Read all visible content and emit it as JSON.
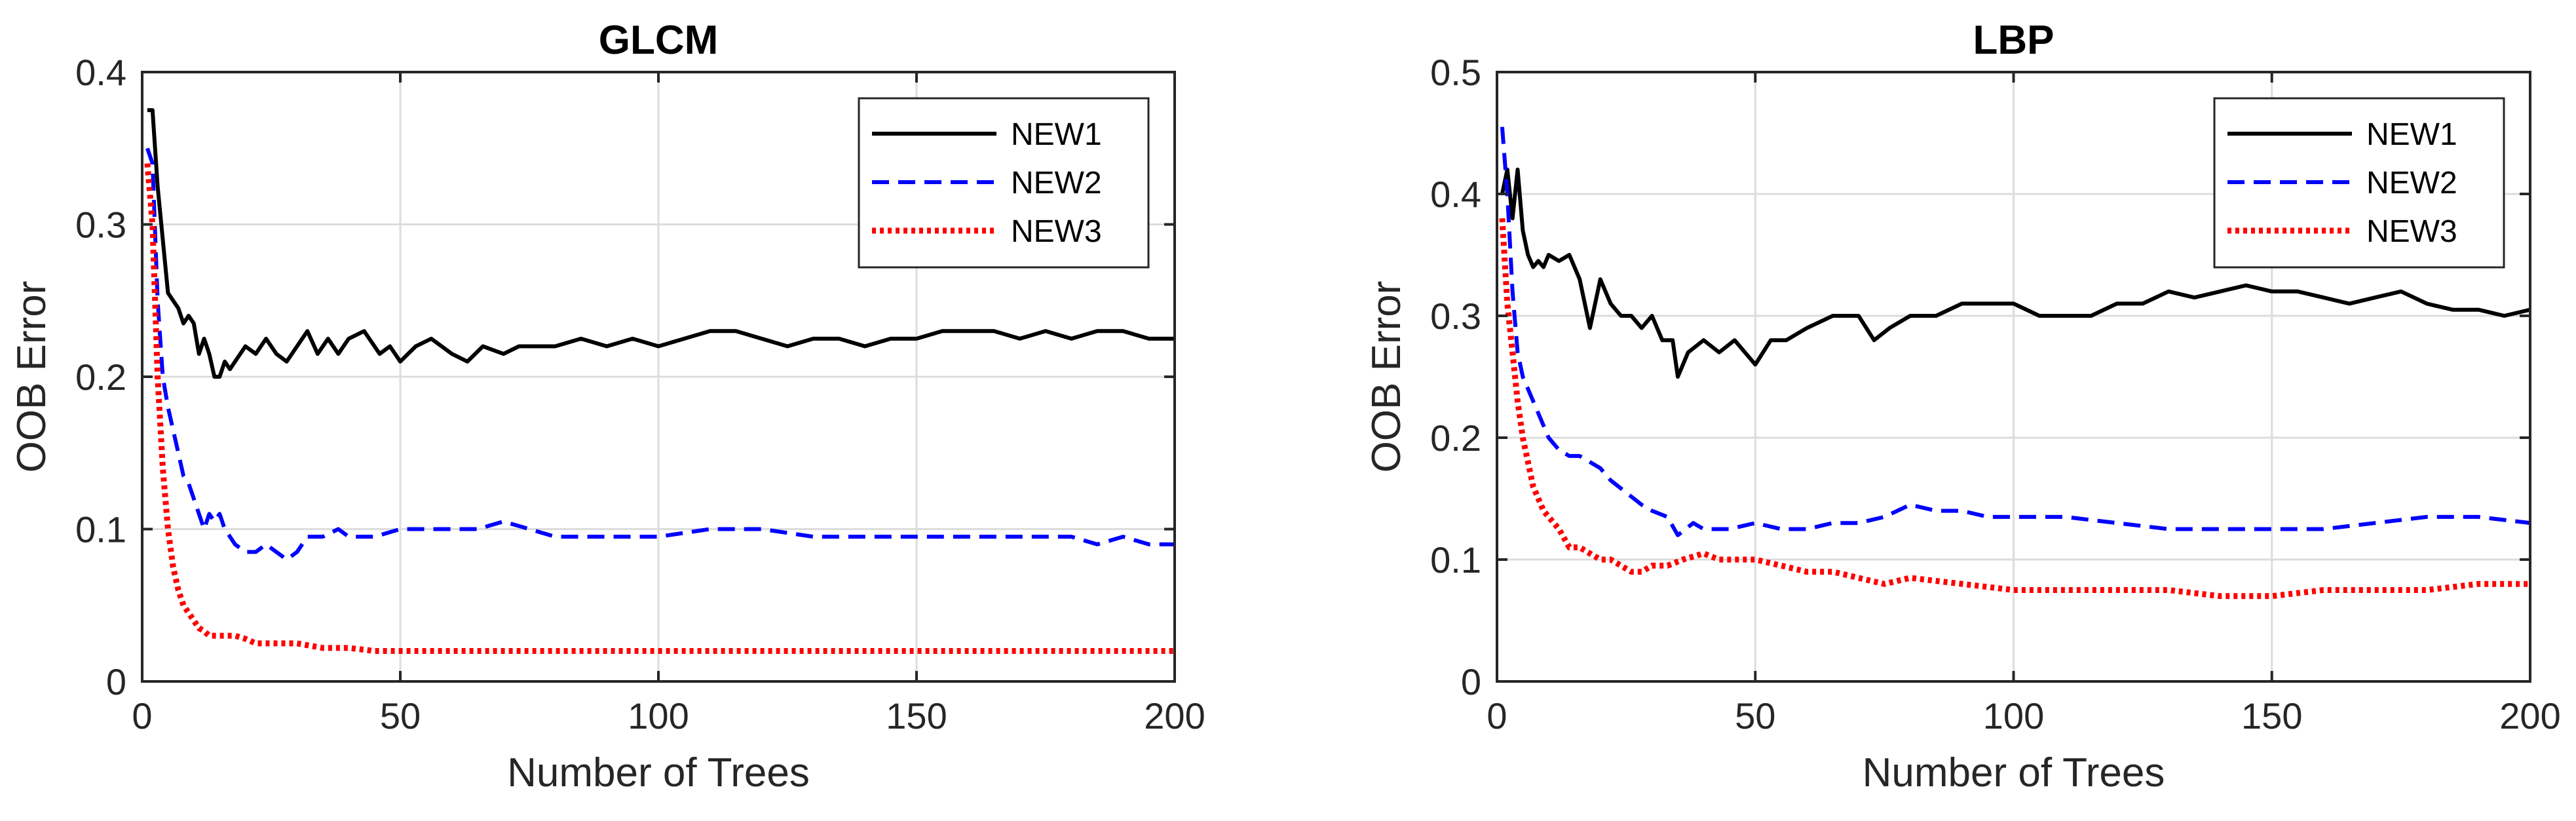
{
  "figure_label": "OOB error vs number of trees for GLCM and LBP features",
  "colors": {
    "NEW1": "#000000",
    "NEW2": "#0000ff",
    "NEW3": "#ff0000"
  },
  "chart_data": [
    {
      "type": "line",
      "title": "GLCM",
      "xlabel": "Number of Trees",
      "ylabel": "OOB Error",
      "xlim": [
        0,
        200
      ],
      "ylim": [
        0,
        0.4
      ],
      "xticks": [
        0,
        50,
        100,
        150,
        200
      ],
      "xtick_labels": [
        "0",
        "50",
        "100",
        "150",
        "200"
      ],
      "yticks": [
        0,
        0.1,
        0.2,
        0.3,
        0.4
      ],
      "ytick_labels": [
        "0",
        "0.1",
        "0.2",
        "0.3",
        "0.4"
      ],
      "grid": true,
      "legend_position": "top-right",
      "series": [
        {
          "name": "NEW1",
          "style": "solid",
          "color": "#000000",
          "x": [
            1,
            2,
            3,
            4,
            5,
            6,
            7,
            8,
            9,
            10,
            11,
            12,
            13,
            14,
            15,
            16,
            17,
            18,
            20,
            22,
            24,
            26,
            28,
            30,
            32,
            34,
            36,
            38,
            40,
            43,
            46,
            48,
            50,
            53,
            56,
            60,
            63,
            66,
            70,
            73,
            76,
            80,
            85,
            90,
            95,
            100,
            105,
            110,
            115,
            120,
            125,
            130,
            135,
            140,
            145,
            150,
            155,
            160,
            165,
            170,
            175,
            180,
            185,
            190,
            195,
            200
          ],
          "y": [
            0.375,
            0.375,
            0.325,
            0.29,
            0.255,
            0.25,
            0.245,
            0.235,
            0.24,
            0.235,
            0.215,
            0.225,
            0.215,
            0.2,
            0.2,
            0.21,
            0.205,
            0.21,
            0.22,
            0.215,
            0.225,
            0.215,
            0.21,
            0.22,
            0.23,
            0.215,
            0.225,
            0.215,
            0.225,
            0.23,
            0.215,
            0.22,
            0.21,
            0.22,
            0.225,
            0.215,
            0.21,
            0.22,
            0.215,
            0.22,
            0.22,
            0.22,
            0.225,
            0.22,
            0.225,
            0.22,
            0.225,
            0.23,
            0.23,
            0.225,
            0.22,
            0.225,
            0.225,
            0.22,
            0.225,
            0.225,
            0.23,
            0.23,
            0.23,
            0.225,
            0.23,
            0.225,
            0.23,
            0.23,
            0.225,
            0.225
          ]
        },
        {
          "name": "NEW2",
          "style": "dashed",
          "color": "#0000ff",
          "x": [
            1,
            2,
            3,
            4,
            5,
            6,
            7,
            8,
            9,
            10,
            11,
            12,
            13,
            14,
            15,
            16,
            17,
            18,
            20,
            22,
            24,
            26,
            28,
            30,
            32,
            35,
            38,
            40,
            45,
            50,
            55,
            60,
            65,
            70,
            75,
            80,
            90,
            100,
            110,
            120,
            130,
            140,
            150,
            160,
            170,
            180,
            185,
            190,
            195,
            200
          ],
          "y": [
            0.35,
            0.34,
            0.25,
            0.2,
            0.18,
            0.165,
            0.15,
            0.135,
            0.13,
            0.12,
            0.11,
            0.1,
            0.11,
            0.105,
            0.11,
            0.1,
            0.095,
            0.09,
            0.085,
            0.085,
            0.09,
            0.085,
            0.08,
            0.085,
            0.095,
            0.095,
            0.1,
            0.095,
            0.095,
            0.1,
            0.1,
            0.1,
            0.1,
            0.105,
            0.1,
            0.095,
            0.095,
            0.095,
            0.1,
            0.1,
            0.095,
            0.095,
            0.095,
            0.095,
            0.095,
            0.095,
            0.09,
            0.095,
            0.09,
            0.09
          ]
        },
        {
          "name": "NEW3",
          "style": "dotted",
          "color": "#ff0000",
          "x": [
            1,
            2,
            3,
            4,
            5,
            6,
            7,
            8,
            9,
            10,
            11,
            12,
            13,
            14,
            15,
            16,
            18,
            20,
            22,
            24,
            26,
            28,
            30,
            35,
            40,
            45,
            50,
            60,
            80,
            100,
            120,
            140,
            160,
            180,
            200
          ],
          "y": [
            0.34,
            0.3,
            0.2,
            0.14,
            0.1,
            0.075,
            0.06,
            0.05,
            0.045,
            0.04,
            0.035,
            0.033,
            0.03,
            0.03,
            0.03,
            0.03,
            0.03,
            0.028,
            0.025,
            0.025,
            0.025,
            0.025,
            0.025,
            0.022,
            0.022,
            0.02,
            0.02,
            0.02,
            0.02,
            0.02,
            0.02,
            0.02,
            0.02,
            0.02,
            0.02
          ]
        }
      ]
    },
    {
      "type": "line",
      "title": "LBP",
      "xlabel": "Number of Trees",
      "ylabel": "OOB Error",
      "xlim": [
        0,
        200
      ],
      "ylim": [
        0,
        0.5
      ],
      "xticks": [
        0,
        50,
        100,
        150,
        200
      ],
      "xtick_labels": [
        "0",
        "50",
        "100",
        "150",
        "200"
      ],
      "yticks": [
        0,
        0.1,
        0.2,
        0.3,
        0.4,
        0.5
      ],
      "ytick_labels": [
        "0",
        "0.1",
        "0.2",
        "0.3",
        "0.4",
        "0.5"
      ],
      "grid": true,
      "legend_position": "top-right",
      "series": [
        {
          "name": "NEW1",
          "style": "solid",
          "color": "#000000",
          "x": [
            1,
            2,
            3,
            4,
            5,
            6,
            7,
            8,
            9,
            10,
            12,
            14,
            16,
            18,
            20,
            22,
            24,
            26,
            28,
            30,
            32,
            34,
            35,
            37,
            40,
            43,
            46,
            50,
            53,
            56,
            60,
            65,
            70,
            73,
            76,
            80,
            85,
            90,
            95,
            100,
            105,
            110,
            115,
            120,
            125,
            130,
            135,
            140,
            145,
            150,
            155,
            160,
            165,
            170,
            175,
            180,
            185,
            190,
            195,
            200
          ],
          "y": [
            0.4,
            0.42,
            0.38,
            0.42,
            0.37,
            0.35,
            0.34,
            0.345,
            0.34,
            0.35,
            0.345,
            0.35,
            0.33,
            0.29,
            0.33,
            0.31,
            0.3,
            0.3,
            0.29,
            0.3,
            0.28,
            0.28,
            0.25,
            0.27,
            0.28,
            0.27,
            0.28,
            0.26,
            0.28,
            0.28,
            0.29,
            0.3,
            0.3,
            0.28,
            0.29,
            0.3,
            0.3,
            0.31,
            0.31,
            0.31,
            0.3,
            0.3,
            0.3,
            0.31,
            0.31,
            0.32,
            0.315,
            0.32,
            0.325,
            0.32,
            0.32,
            0.315,
            0.31,
            0.315,
            0.32,
            0.31,
            0.305,
            0.305,
            0.3,
            0.305
          ]
        },
        {
          "name": "NEW2",
          "style": "dashed",
          "color": "#0000ff",
          "x": [
            1,
            2,
            3,
            4,
            5,
            6,
            7,
            8,
            9,
            10,
            12,
            14,
            16,
            18,
            20,
            22,
            25,
            28,
            30,
            33,
            35,
            38,
            40,
            45,
            50,
            55,
            60,
            65,
            70,
            75,
            80,
            85,
            90,
            95,
            100,
            110,
            120,
            130,
            140,
            150,
            160,
            170,
            180,
            190,
            200
          ],
          "y": [
            0.455,
            0.4,
            0.32,
            0.27,
            0.25,
            0.24,
            0.23,
            0.22,
            0.21,
            0.2,
            0.19,
            0.185,
            0.185,
            0.18,
            0.175,
            0.165,
            0.155,
            0.145,
            0.14,
            0.135,
            0.12,
            0.13,
            0.125,
            0.125,
            0.13,
            0.125,
            0.125,
            0.13,
            0.13,
            0.135,
            0.145,
            0.14,
            0.14,
            0.135,
            0.135,
            0.135,
            0.13,
            0.125,
            0.125,
            0.125,
            0.125,
            0.13,
            0.135,
            0.135,
            0.13
          ]
        },
        {
          "name": "NEW3",
          "style": "dotted",
          "color": "#ff0000",
          "x": [
            1,
            2,
            3,
            4,
            5,
            6,
            7,
            8,
            9,
            10,
            12,
            14,
            16,
            18,
            20,
            22,
            24,
            26,
            28,
            30,
            33,
            36,
            40,
            43,
            46,
            50,
            55,
            60,
            65,
            70,
            75,
            80,
            90,
            100,
            110,
            120,
            130,
            140,
            150,
            160,
            170,
            180,
            190,
            200
          ],
          "y": [
            0.38,
            0.31,
            0.27,
            0.23,
            0.2,
            0.18,
            0.16,
            0.15,
            0.14,
            0.135,
            0.125,
            0.11,
            0.11,
            0.105,
            0.1,
            0.1,
            0.095,
            0.09,
            0.09,
            0.095,
            0.095,
            0.1,
            0.105,
            0.1,
            0.1,
            0.1,
            0.095,
            0.09,
            0.09,
            0.085,
            0.08,
            0.085,
            0.08,
            0.075,
            0.075,
            0.075,
            0.075,
            0.07,
            0.07,
            0.075,
            0.075,
            0.075,
            0.08,
            0.08
          ]
        }
      ]
    }
  ]
}
